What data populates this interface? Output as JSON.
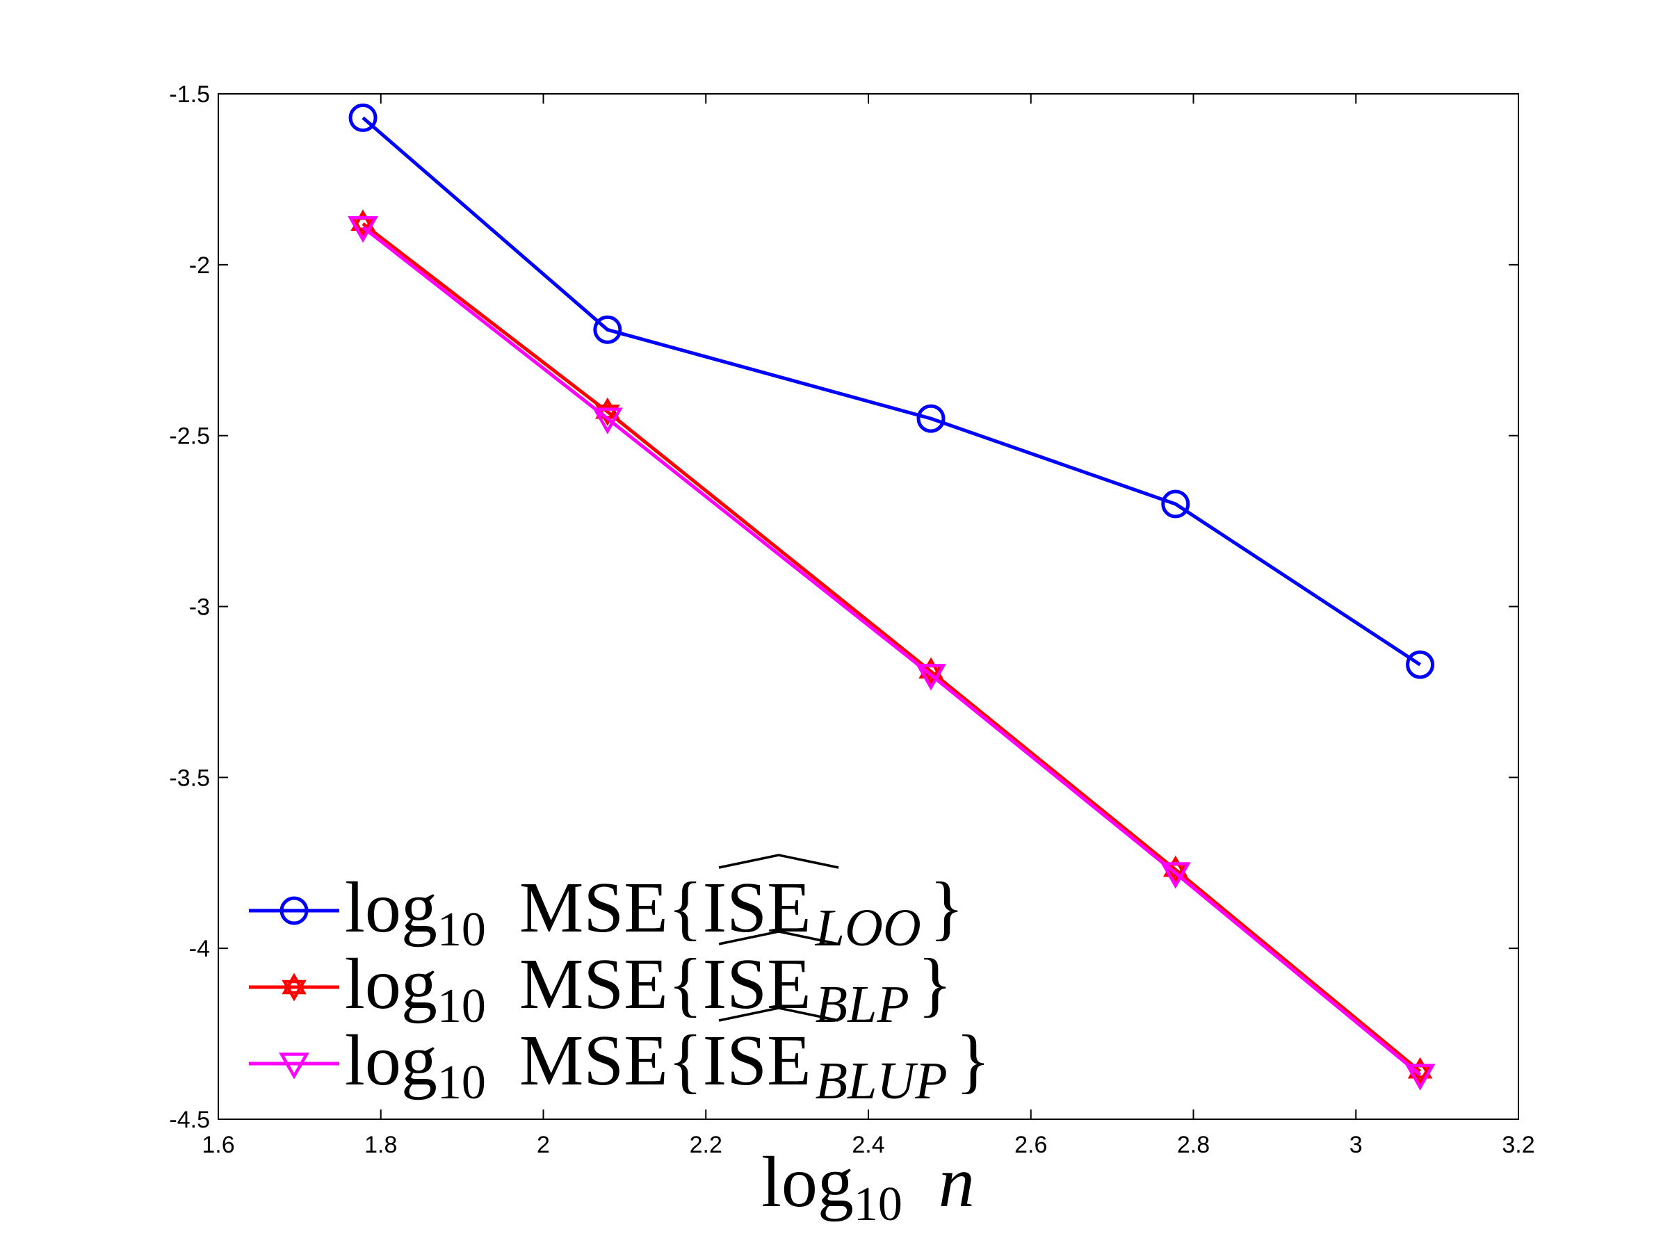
{
  "chart_data": {
    "type": "line",
    "title": "",
    "xlabel": "log10 n",
    "xlabel_parts": {
      "fn": "log",
      "sub": "10",
      "var": "n"
    },
    "ylabel": "",
    "xlim": [
      1.6,
      3.2
    ],
    "ylim": [
      -4.5,
      -1.5
    ],
    "xticks": [
      1.6,
      1.8,
      2.0,
      2.2,
      2.4,
      2.6,
      2.8,
      3.0,
      3.2
    ],
    "xtick_labels": [
      "1.6",
      "1.8",
      "2",
      "2.2",
      "2.4",
      "2.6",
      "2.8",
      "3",
      "3.2"
    ],
    "yticks": [
      -1.5,
      -2.0,
      -2.5,
      -3.0,
      -3.5,
      -4.0,
      -4.5
    ],
    "ytick_labels": [
      "-1.5",
      "-2",
      "-2.5",
      "-3",
      "-3.5",
      "-4",
      "-4.5"
    ],
    "grid": false,
    "legend_position": "bottom-left",
    "series": [
      {
        "name": "log10 MSE{ISE_LOO}",
        "legend": {
          "fn": "log",
          "sub": "10",
          "stat": "MSE",
          "open": "{",
          "est": "ISE",
          "estsub": "LOO",
          "close": "}"
        },
        "color": "#0000ff",
        "marker": "circle",
        "x": [
          1.778,
          2.079,
          2.477,
          2.778,
          3.079
        ],
        "values": [
          -1.57,
          -2.19,
          -2.45,
          -2.7,
          -3.17
        ]
      },
      {
        "name": "log10 MSE{ISE_BLP}",
        "legend": {
          "fn": "log",
          "sub": "10",
          "stat": "MSE",
          "open": "{",
          "est": "ISE",
          "estsub": "BLP",
          "close": "}"
        },
        "color": "#ff0000",
        "marker": "hexagram",
        "x": [
          1.778,
          2.079,
          2.477,
          2.778,
          3.079
        ],
        "values": [
          -1.88,
          -2.43,
          -3.19,
          -3.77,
          -4.36
        ]
      },
      {
        "name": "log10 MSE{ISE_BLUP}",
        "legend": {
          "fn": "log",
          "sub": "10",
          "stat": "MSE",
          "open": "{",
          "est": "ISE",
          "estsub": "BLUP",
          "close": "}"
        },
        "color": "#ff00ff",
        "marker": "triangle-down",
        "x": [
          1.778,
          2.079,
          2.477,
          2.778,
          3.079
        ],
        "values": [
          -1.89,
          -2.45,
          -3.2,
          -3.78,
          -4.37
        ]
      }
    ]
  }
}
